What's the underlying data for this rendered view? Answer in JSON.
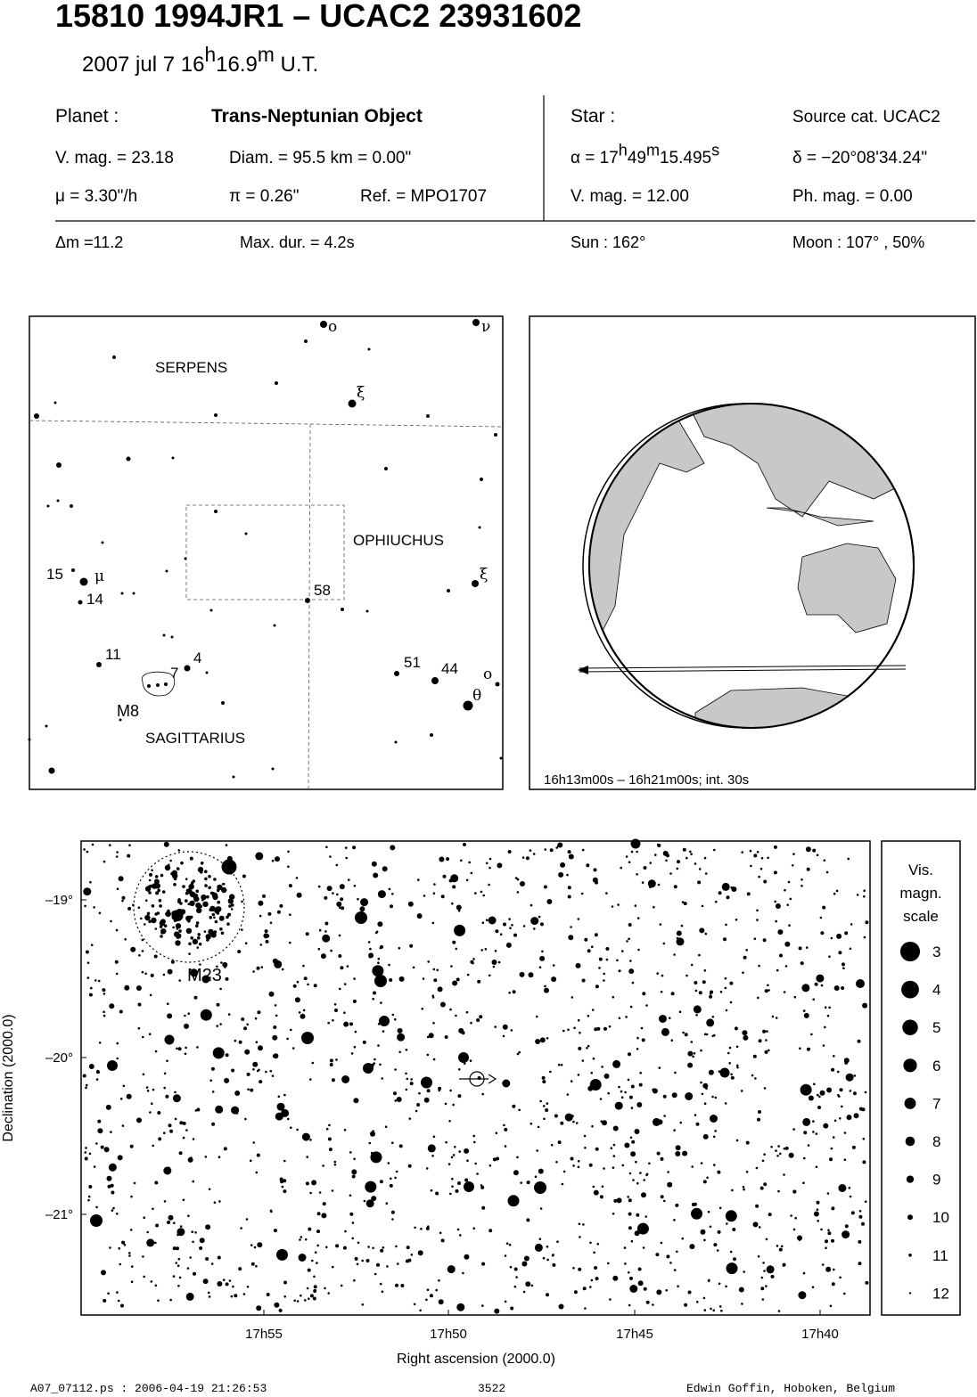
{
  "header": {
    "title": "15810 1994JR1  –  UCAC2 23931602",
    "date": [
      "2007 jul  7  16",
      "h",
      "16.9",
      "m",
      " U.T."
    ]
  },
  "info": {
    "planet_label": "Planet :",
    "planet_type": "Trans-Neptunian Object",
    "vmag": "V. mag. = 23.18",
    "diam": "Diam. = 95.5 km = 0.00\"",
    "mu": "μ =  3.30\"/h",
    "pi": "π =  0.26\"",
    "ref": "Ref. = MPO1707",
    "star_label": "Star :",
    "source": "Source cat.  UCAC2",
    "alpha": [
      "α = 17",
      "h",
      "49",
      "m",
      "15.495",
      "s"
    ],
    "delta": "δ = −20°08'34.24\"",
    "star_vmag": "V. mag. = 12.00",
    "ph_mag": "Ph. mag. =  0.00",
    "dm": "Δm =11.2",
    "max_dur": "Max. dur. = 4.2s",
    "sun": "Sun : 162°",
    "moon": "Moon : 107° , 50%"
  },
  "finder": {
    "constellations": [
      "SERPENS",
      "OPHIUCHUS",
      "SAGITTARIUS"
    ],
    "objects": [
      "M8"
    ],
    "stars": [
      "ο",
      "ν",
      "ξ",
      "15",
      "μ",
      "14",
      "58",
      "ξ",
      "11",
      "4",
      "7",
      "51",
      "44",
      "ο",
      "θ"
    ]
  },
  "globe": {
    "caption": "16h13m00s – 16h21m00s; int. 30s"
  },
  "starchart": {
    "yticks": [
      "–19°",
      "–20°",
      "–21°"
    ],
    "xticks": [
      "17h55",
      "17h50",
      "17h45",
      "17h40"
    ],
    "ylabel": "Declination (2000.0)",
    "xlabel": "Right ascension (2000.0)",
    "cluster": "M23",
    "scale_title": [
      "Vis.",
      "magn.",
      "scale"
    ],
    "scale": [
      3,
      4,
      5,
      6,
      7,
      8,
      9,
      10,
      11,
      12
    ]
  },
  "footer": {
    "file": "A07_07112.ps : 2006-04-19 21:26:53",
    "number": "3522",
    "author": "Edwin Goffin, Hoboken, Belgium"
  }
}
